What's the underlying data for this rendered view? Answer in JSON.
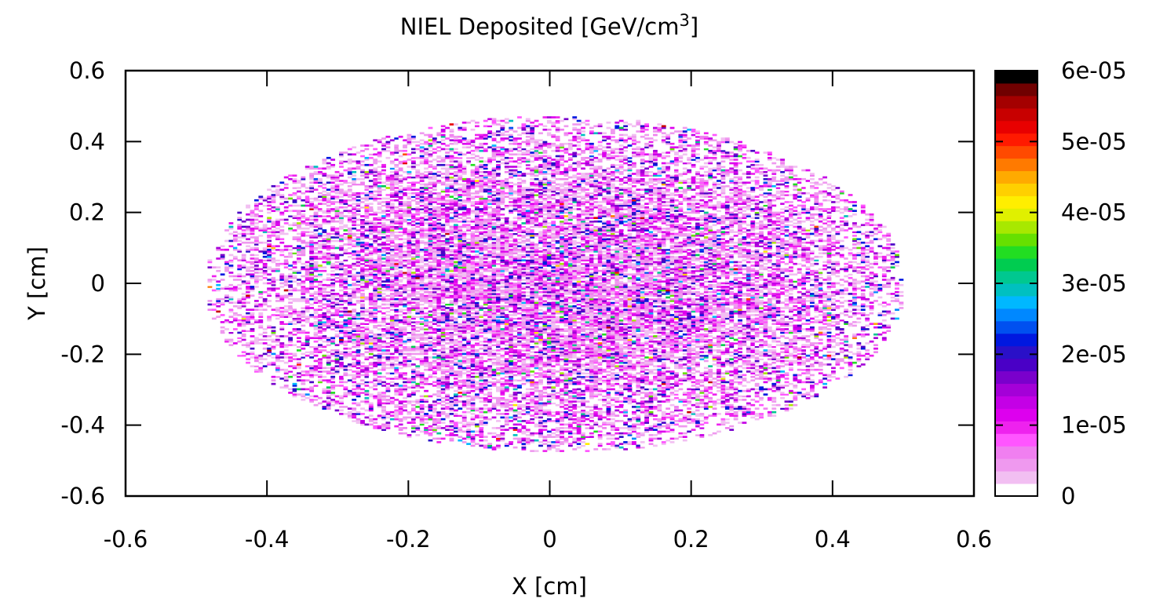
{
  "chart_data": {
    "type": "heatmap",
    "title": "NIEL Deposited [GeV/cm",
    "title_superscript": "3",
    "title_suffix": "]",
    "xlabel": "X [cm]",
    "ylabel": "Y [cm]",
    "xlim": [
      -0.6,
      0.6
    ],
    "ylim": [
      -0.6,
      0.6
    ],
    "x_ticks": [
      -0.6,
      -0.4,
      -0.2,
      0,
      0.2,
      0.4,
      0.6
    ],
    "x_tick_labels": [
      "-0.6",
      "-0.4",
      "-0.2",
      "0",
      "0.2",
      "0.4",
      "0.6"
    ],
    "y_ticks": [
      -0.6,
      -0.4,
      -0.2,
      0,
      0.2,
      0.4,
      0.6
    ],
    "y_tick_labels": [
      "-0.6",
      "-0.4",
      "-0.2",
      "0",
      "0.2",
      "0.4",
      "0.6"
    ],
    "grid": false,
    "bin_size": 0.006,
    "distribution": {
      "shape": "elliptical blob centered at origin",
      "x_extent": [
        -0.49,
        0.5
      ],
      "y_extent": [
        -0.48,
        0.47
      ],
      "typical_value": 8e-06,
      "max_value": 5.5e-05
    },
    "colorbar": {
      "range": [
        0,
        6e-05
      ],
      "tick_values": [
        0,
        1e-05,
        2e-05,
        3e-05,
        4e-05,
        5e-05,
        6e-05
      ],
      "tick_labels": [
        "0",
        "1e-05",
        "2e-05",
        "3e-05",
        "4e-05",
        "5e-05",
        "6e-05"
      ],
      "colors": [
        "#ffffff",
        "#f2bff2",
        "#ef99ef",
        "#f07ff0",
        "#ff55ff",
        "#ee22ee",
        "#dd00ee",
        "#c400e6",
        "#a400d8",
        "#7a00cc",
        "#4a00c6",
        "#2a10c8",
        "#0018e0",
        "#0050f0",
        "#0088ff",
        "#00b8ff",
        "#00c0c0",
        "#00c890",
        "#00cc50",
        "#22dd22",
        "#66e000",
        "#a8e800",
        "#e0f000",
        "#ffee00",
        "#ffd000",
        "#ffaa00",
        "#ff7a00",
        "#ff4a00",
        "#ff1a00",
        "#e80000",
        "#c80000",
        "#a40000",
        "#700000",
        "#000000"
      ]
    }
  }
}
